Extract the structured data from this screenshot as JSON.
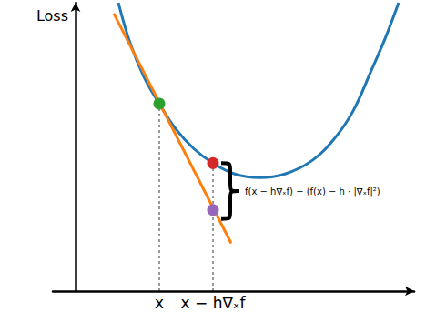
{
  "chart_data": {
    "type": "line",
    "ylabel": "Loss",
    "xlim": [
      -0.25,
      3.72
    ],
    "ylim": [
      0,
      3.2
    ],
    "xticks": [
      {
        "value": 0.92,
        "label": "x"
      },
      {
        "value": 1.51,
        "label": "x − h∇ₓf"
      }
    ],
    "tick_labels": "x",
    "grid": false,
    "series": [
      {
        "type": "line",
        "color": "#1f77b4",
        "line_style": "solid",
        "x": [
          0.47,
          0.6,
          0.75,
          0.92,
          1.1,
          1.3,
          1.51,
          1.75,
          2.02,
          2.3,
          2.6,
          2.85,
          3.05,
          3.25,
          3.4,
          3.55
        ],
        "values": [
          3.2,
          2.75,
          2.38,
          2.08,
          1.8,
          1.58,
          1.42,
          1.3,
          1.26,
          1.3,
          1.45,
          1.7,
          2.0,
          2.45,
          2.8,
          3.2
        ]
      },
      {
        "type": "line",
        "color": "#ff7f0e",
        "line_style": "solid",
        "x": [
          0.42,
          1.71
        ],
        "values": [
          3.08,
          0.53
        ]
      },
      {
        "type": "line",
        "color": "#000000",
        "line_style": "dashed",
        "x": [
          0.92,
          0.92
        ],
        "values": [
          0,
          2.08
        ]
      },
      {
        "type": "line",
        "color": "#000000",
        "line_style": "dashed",
        "x": [
          1.51,
          1.51
        ],
        "values": [
          0,
          1.42
        ]
      },
      {
        "type": "scatter",
        "marker": "circle",
        "colors": [
          "#2ca02c",
          "#d62728",
          "#9467bd"
        ],
        "x": [
          0.92,
          1.51,
          1.51
        ],
        "values": [
          2.08,
          1.42,
          0.9
        ]
      }
    ],
    "annotations": [
      {
        "text": "f(x − h∇ₓf) − (f(x) − h · |∇ₓf|²)",
        "x": 1.6,
        "y": [
          0.8,
          1.42
        ]
      }
    ]
  }
}
